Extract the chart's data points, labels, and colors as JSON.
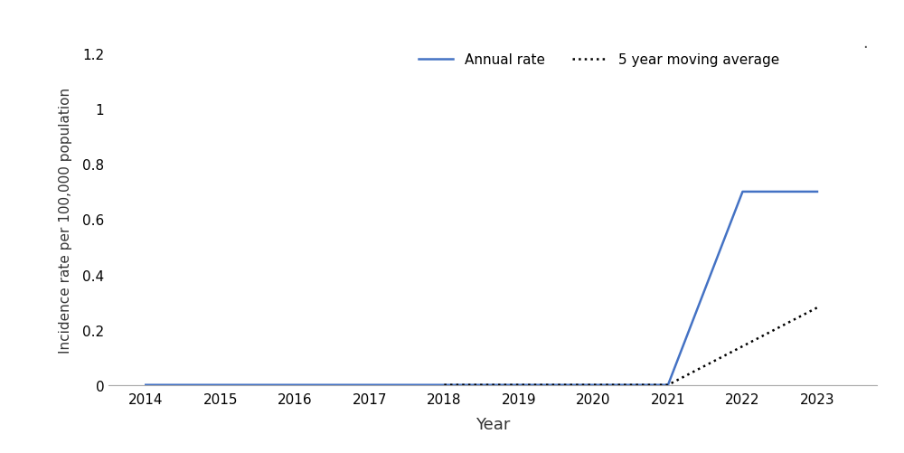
{
  "years": [
    2014,
    2015,
    2016,
    2017,
    2018,
    2019,
    2020,
    2021,
    2022,
    2023
  ],
  "annual_rate": [
    0.0,
    0.0,
    0.0,
    0.0,
    0.0,
    0.0,
    0.0,
    0.0,
    0.7,
    0.7
  ],
  "moving_avg_years": [
    2018,
    2019,
    2020,
    2021,
    2022,
    2023
  ],
  "moving_avg": [
    0.0,
    0.0,
    0.0,
    0.0,
    0.14,
    0.28
  ],
  "annual_color": "#4472C4",
  "moving_avg_color": "#000000",
  "xlabel": "Year",
  "ylabel": "Incidence rate per 100,000 population",
  "legend_annual": "Annual rate",
  "legend_ma": "5 year moving average",
  "ylim": [
    0,
    1.2
  ],
  "yticks": [
    0,
    0.2,
    0.4,
    0.6,
    0.8,
    1.0,
    1.2
  ],
  "xlim": [
    2013.5,
    2023.8
  ],
  "xticks": [
    2014,
    2015,
    2016,
    2017,
    2018,
    2019,
    2020,
    2021,
    2022,
    2023
  ],
  "background_color": "#ffffff",
  "line_width": 1.8,
  "figsize": [
    10.0,
    5.02
  ],
  "dpi": 100
}
